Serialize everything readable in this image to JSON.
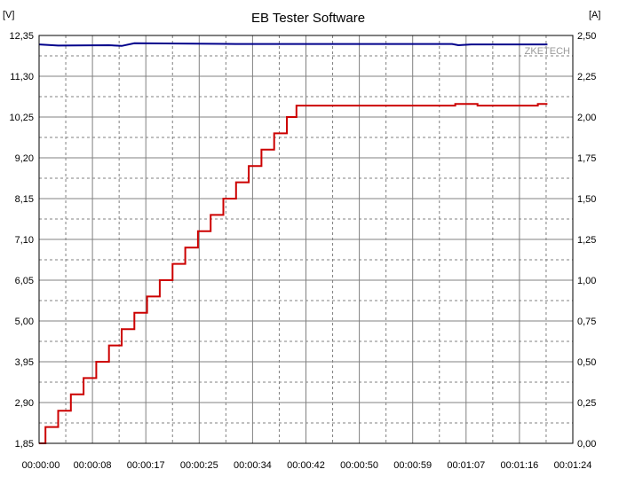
{
  "chart_data": {
    "type": "line",
    "title": "EB Tester Software",
    "watermark": "ZKETECH",
    "grid": true,
    "y_left": {
      "unit": "[V]",
      "range": [
        1.85,
        12.35
      ],
      "ticks": [
        "12,35",
        "11,30",
        "10,25",
        "9,20",
        "8,15",
        "7,10",
        "6,05",
        "5,00",
        "3,95",
        "2,90",
        "1,85"
      ]
    },
    "y_right": {
      "unit": "[A]",
      "range": [
        0.0,
        2.5
      ],
      "ticks": [
        "2,50",
        "2,25",
        "2,00",
        "1,75",
        "1,50",
        "1,25",
        "1,00",
        "0,75",
        "0,50",
        "0,25",
        "0,00"
      ]
    },
    "x": {
      "range_seconds": [
        0,
        84
      ],
      "ticks": [
        "00:00:00",
        "00:00:08",
        "00:00:17",
        "00:00:25",
        "00:00:34",
        "00:00:42",
        "00:00:50",
        "00:00:59",
        "00:01:07",
        "00:01:16",
        "00:01:24"
      ]
    },
    "series": [
      {
        "axis": "left",
        "color": "#00008b",
        "points": [
          [
            0,
            12.12
          ],
          [
            3,
            12.09
          ],
          [
            11,
            12.1
          ],
          [
            13,
            12.08
          ],
          [
            15,
            12.15
          ],
          [
            31,
            12.13
          ],
          [
            65,
            12.13
          ],
          [
            66,
            12.1
          ],
          [
            68,
            12.12
          ],
          [
            80,
            12.12
          ]
        ]
      },
      {
        "axis": "right",
        "color": "#cc0000",
        "step": true,
        "points": [
          [
            0,
            0.0
          ],
          [
            1,
            0.1
          ],
          [
            3,
            0.2
          ],
          [
            5,
            0.3
          ],
          [
            7,
            0.4
          ],
          [
            9,
            0.5
          ],
          [
            11,
            0.6
          ],
          [
            13,
            0.7
          ],
          [
            15,
            0.8
          ],
          [
            17,
            0.9
          ],
          [
            19,
            1.0
          ],
          [
            21,
            1.1
          ],
          [
            23,
            1.2
          ],
          [
            25,
            1.3
          ],
          [
            27,
            1.4
          ],
          [
            29,
            1.5
          ],
          [
            31,
            1.6
          ],
          [
            33,
            1.7
          ],
          [
            35,
            1.8
          ],
          [
            37,
            1.9
          ],
          [
            39,
            2.0
          ],
          [
            40.5,
            2.07
          ],
          [
            65,
            2.07
          ],
          [
            65.5,
            2.08
          ],
          [
            69,
            2.07
          ],
          [
            78,
            2.07
          ],
          [
            78.5,
            2.08
          ],
          [
            80,
            2.08
          ]
        ]
      }
    ]
  }
}
